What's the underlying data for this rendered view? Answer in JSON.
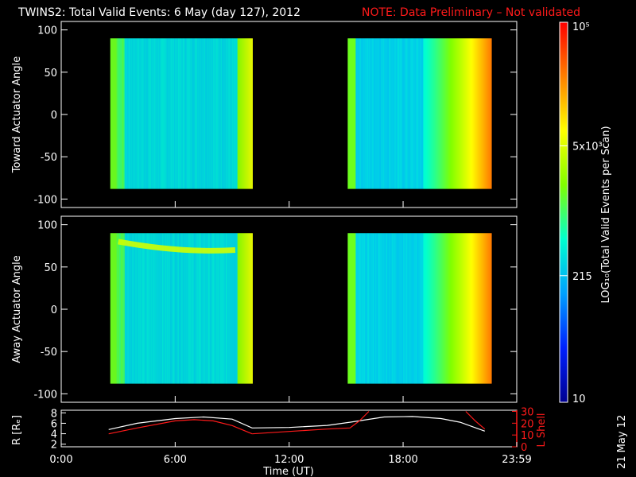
{
  "header": {
    "title": "TWINS2: Total Valid Events:  6 May (day 127), 2012",
    "note": "NOTE: Data Preliminary – Not validated",
    "note_color": "#ff1a1a"
  },
  "stamp": "21 May 12",
  "chart_data": [
    {
      "type": "heatmap",
      "ylabel": "Toward Actuator Angle",
      "xlim": [
        "0:00",
        "23:59"
      ],
      "ylim": [
        -110,
        110
      ],
      "yticks": [
        100,
        50,
        0,
        -50,
        -100
      ],
      "angle_range": [
        -88,
        90
      ],
      "colorscale": "log",
      "blocks": [
        {
          "x_start": "2:35",
          "x_end": "10:05"
        },
        {
          "x_start": "15:05",
          "x_end": "22:40"
        }
      ]
    },
    {
      "type": "heatmap",
      "ylabel": "Away Actuator Angle",
      "xlim": [
        "0:00",
        "23:59"
      ],
      "ylim": [
        -110,
        110
      ],
      "yticks": [
        100,
        50,
        0,
        -50,
        -100
      ],
      "angle_range": [
        -88,
        90
      ],
      "colorscale": "log",
      "blocks": [
        {
          "x_start": "2:35",
          "x_end": "10:05"
        },
        {
          "x_start": "15:05",
          "x_end": "22:40"
        }
      ],
      "feature": {
        "description_angle_start": 80,
        "description_angle_end": 70
      }
    },
    {
      "type": "line",
      "ylabel_left": "R [Rₑ]",
      "ylabel_right": "L Shell",
      "xlabel": "Time (UT)",
      "xticks": [
        "0:00",
        "6:00",
        "12:00",
        "18:00",
        "23:59"
      ],
      "yticks_left": [
        2,
        4,
        6,
        8
      ],
      "yticks_right": [
        0,
        10,
        20,
        30
      ],
      "ylim_left": [
        1.5,
        8.5
      ],
      "ylim_right": [
        0,
        31
      ],
      "series": [
        {
          "name": "R [Rₑ]",
          "color": "#ffffff",
          "x": [
            2.5,
            4,
            6,
            7.5,
            9,
            10.05,
            12,
            14,
            15.2,
            17,
            18.5,
            20,
            21,
            22.3
          ],
          "y": [
            4.8,
            6.0,
            6.9,
            7.2,
            6.8,
            5.1,
            5.2,
            5.6,
            6.2,
            7.2,
            7.3,
            6.9,
            6.2,
            4.5
          ],
          "axis": "left"
        },
        {
          "name": "L Shell",
          "color": "#ff1a1a",
          "axis": "right",
          "segments": [
            {
              "x": [
                2.5,
                4,
                6,
                7,
                8,
                9,
                10.05
              ],
              "y": [
                11,
                16,
                22,
                23,
                22,
                18,
                11
              ]
            },
            {
              "x": [
                10.05,
                12,
                14,
                15.2,
                15.7,
                16.2
              ],
              "y": [
                11,
                13,
                15,
                16,
                22,
                30
              ]
            },
            {
              "x": [
                21.3,
                21.8,
                22.3
              ],
              "y": [
                30,
                22,
                15
              ]
            }
          ]
        }
      ]
    }
  ],
  "colorbar": {
    "label": "LOG₁₀(Total Valid Events per Scan)",
    "ticks": [
      "10",
      "215",
      "5x10³",
      "10⁵"
    ],
    "scale_min": 10,
    "scale_max": 100000,
    "colors": [
      "#000090",
      "#0020ff",
      "#00a0ff",
      "#00ffd0",
      "#80ff00",
      "#ffff00",
      "#ff8000",
      "#ff0000"
    ]
  }
}
